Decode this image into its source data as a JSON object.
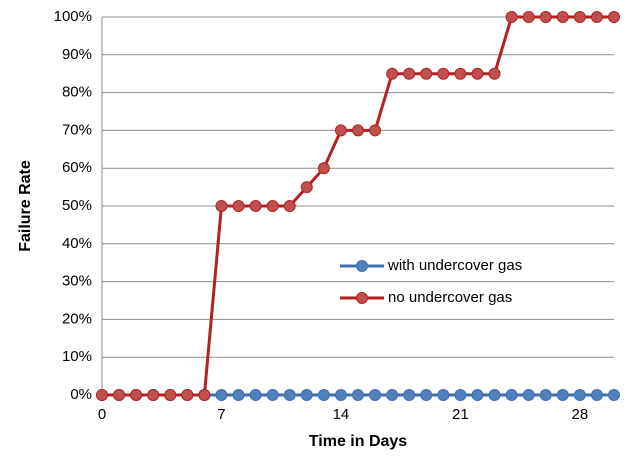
{
  "chart_data": {
    "type": "line",
    "x_label": "Time in Days",
    "y_label": "Failure Rate",
    "x": [
      0,
      1,
      2,
      3,
      4,
      5,
      6,
      7,
      8,
      9,
      10,
      11,
      12,
      13,
      14,
      15,
      16,
      17,
      18,
      19,
      20,
      21,
      22,
      23,
      24,
      25,
      26,
      27,
      28,
      29,
      30
    ],
    "series": [
      {
        "name": "with undercover gas",
        "color": "#4f81bd",
        "values": [
          0,
          0,
          0,
          0,
          0,
          0,
          0,
          0,
          0,
          0,
          0,
          0,
          0,
          0,
          0,
          0,
          0,
          0,
          0,
          0,
          0,
          0,
          0,
          0,
          0,
          0,
          0,
          0,
          0,
          0,
          0
        ]
      },
      {
        "name": "no undercover gas",
        "color": "#c0504d",
        "values": [
          0,
          0,
          0,
          0,
          0,
          0,
          0,
          50,
          50,
          50,
          50,
          50,
          55,
          60,
          70,
          70,
          70,
          85,
          85,
          85,
          85,
          85,
          85,
          85,
          100,
          100,
          100,
          100,
          100,
          100,
          100
        ]
      }
    ],
    "xlim": [
      0,
      30
    ],
    "xticks": [
      0,
      7,
      14,
      21,
      28
    ],
    "ylim": [
      0,
      100
    ],
    "yticks": [
      {
        "value": 0,
        "label": "0%"
      },
      {
        "value": 10,
        "label": "10%"
      },
      {
        "value": 20,
        "label": "20%"
      },
      {
        "value": 30,
        "label": "30%"
      },
      {
        "value": 40,
        "label": "40%"
      },
      {
        "value": 50,
        "label": "50%"
      },
      {
        "value": 60,
        "label": "60%"
      },
      {
        "value": 70,
        "label": "70%"
      },
      {
        "value": 80,
        "label": "80%"
      },
      {
        "value": 90,
        "label": "90%"
      },
      {
        "value": 100,
        "label": "100%"
      }
    ],
    "grid": true,
    "legend": "right"
  }
}
